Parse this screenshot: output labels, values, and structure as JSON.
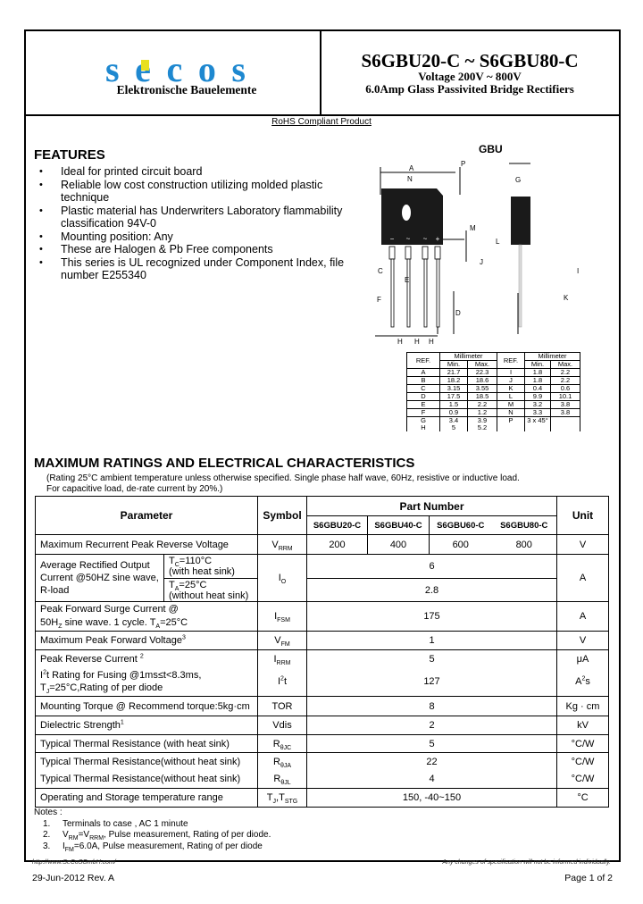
{
  "header": {
    "logo_text": "secos",
    "logo_subtitle": "Elektronische Bauelemente",
    "title": "S6GBU20-C ~ S6GBU80-C",
    "subtitle_voltage": "Voltage 200V ~ 800V",
    "subtitle_desc": "6.0Amp Glass Passivited Bridge Rectifiers",
    "brand_colors": {
      "blue": "#1e88d0",
      "yellow": "#e8e020"
    }
  },
  "rohs": "RoHS Compliant Product",
  "features": {
    "title": "FEATURES",
    "items": [
      "Ideal for printed circuit board",
      "Reliable low cost construction utilizing molded plastic technique",
      "Plastic material has Underwriters Laboratory flammability classification 94V-0",
      "Mounting position: Any",
      "These are Halogen & Pb Free components",
      "This series is UL recognized under Component Index, file number E255340"
    ]
  },
  "package": {
    "name": "GBU",
    "labels": [
      "A",
      "B",
      "C",
      "D",
      "E",
      "F",
      "G",
      "H",
      "I",
      "J",
      "K",
      "L",
      "M",
      "N",
      "P"
    ],
    "pin_marks": [
      "−",
      "~",
      "~",
      "+"
    ],
    "dimensions": {
      "headers": {
        "ref": "REF.",
        "unit": "Millimeter",
        "min": "Min.",
        "max": "Max."
      },
      "rows": [
        [
          [
            "A",
            "21.7",
            "22.3"
          ],
          [
            "I",
            "1.8",
            "2.2"
          ]
        ],
        [
          [
            "B",
            "18.2",
            "18.6"
          ],
          [
            "J",
            "1.8",
            "2.2"
          ]
        ],
        [
          [
            "C",
            "3.15",
            "3.55"
          ],
          [
            "K",
            "0.4",
            "0.6"
          ]
        ],
        [
          [
            "D",
            "17.5",
            "18.5"
          ],
          [
            "L",
            "9.9",
            "10.1"
          ]
        ],
        [
          [
            "E",
            "1.5",
            "2.2"
          ],
          [
            "M",
            "3.2",
            "3.8"
          ]
        ],
        [
          [
            "F",
            "0.9",
            "1.2"
          ],
          [
            "N",
            "3.3",
            "3.8"
          ]
        ],
        [
          [
            "G",
            "3.4",
            "3.9"
          ],
          [
            "P",
            "3 x 45°",
            ""
          ]
        ],
        [
          [
            "H",
            "5",
            "5.2"
          ],
          [
            "",
            "",
            ""
          ]
        ]
      ]
    }
  },
  "ratings": {
    "title": "MAXIMUM RATINGS AND ELECTRICAL CHARACTERISTICS",
    "condition_1": "(Rating 25°C ambient temperature unless otherwise specified. Single phase half wave, 60Hz, resistive or inductive load.",
    "condition_2": "For capacitive load, de-rate current by 20%.)",
    "headers": {
      "parameter": "Parameter",
      "symbol": "Symbol",
      "part_number": "Part Number",
      "unit": "Unit",
      "parts": [
        "S6GBU20-C",
        "S6GBU40-C",
        "S6GBU60-C",
        "S6GBU80-C"
      ]
    },
    "rows": {
      "vrrm": {
        "param": "Maximum Recurrent Peak Reverse Voltage",
        "sym": "V",
        "sub": "RRM",
        "values": [
          "200",
          "400",
          "600",
          "800"
        ],
        "unit": "V"
      },
      "io": {
        "param": "Average Rectified Output Current @50HZ sine wave, R-load",
        "sym": "I",
        "sub": "O",
        "cond1a": "T",
        "cond1sub": "C",
        "cond1b": "=110°C",
        "cond1c": "(with heat sink)",
        "val1": "6",
        "cond2a": "T",
        "cond2sub": "A",
        "cond2b": "=25°C",
        "cond2c": "(without heat sink)",
        "val2": "2.8",
        "unit": "A"
      },
      "ifsm": {
        "param1": "Peak Forward Surge Current @",
        "param2a": "50H",
        "param2sub": "Z",
        "param2b": " sine wave. 1 cycle. T",
        "param2sub2": "A",
        "param2c": "=25°C",
        "sym": "I",
        "sub": "FSM",
        "value": "175",
        "unit": "A"
      },
      "vfm": {
        "param": "Maximum Peak Forward Voltage",
        "sup": "3",
        "sym": "V",
        "sub": "FM",
        "value": "1",
        "unit": "V"
      },
      "irrm": {
        "param": "Peak Reverse Current ",
        "sup": "2",
        "sym": "I",
        "sub": "RRM",
        "value": "5",
        "unit": "μA"
      },
      "i2t": {
        "param_a": "I",
        "param_sup": "2",
        "param_b": "t Rating for Fusing @1ms≤t<8.3ms,",
        "param2a": "T",
        "param2sub": "J",
        "param2b": "=25°C,Rating of per diode",
        "sym_a": "I",
        "sym_sup": "2",
        "sym_b": "t",
        "value": "127",
        "unit_a": "A",
        "unit_sup": "2",
        "unit_b": "s"
      },
      "tor": {
        "param": "Mounting Torque @ Recommend torque:5kg·cm",
        "sym": "TOR",
        "value": "8",
        "unit": "Kg · cm"
      },
      "vdis": {
        "param": "Dielectric Strength",
        "sup": "1",
        "sym": "Vdis",
        "value": "2",
        "unit": "kV"
      },
      "rjc": {
        "param": "Typical Thermal Resistance (with heat sink)",
        "sym": "R",
        "sub": "θJC",
        "value": "5",
        "unit": "°C/W"
      },
      "rja": {
        "param": "Typical Thermal Resistance(without heat sink)",
        "sym": "R",
        "sub": "θJA",
        "value": "22",
        "unit": "°C/W"
      },
      "rjl": {
        "param": "Typical Thermal Resistance(without heat sink)",
        "sym": "R",
        "sub": "θJL",
        "value": "4",
        "unit": "°C/W"
      },
      "temp": {
        "param": "Operating and Storage temperature range",
        "sym_a": "T",
        "sym_sub": "J",
        "sym_b": ",T",
        "sym_sub2": "STG",
        "value": "150, -40~150",
        "unit": "°C"
      }
    }
  },
  "notes": {
    "title": "Notes :",
    "n1": {
      "num": "1.",
      "text": "Terminals to case , AC 1 minute"
    },
    "n2": {
      "num": "2.",
      "a": "V",
      "asub": "RM",
      "b": "=V",
      "bsub": "RRM",
      "c": ", Pulse measurement, Rating of per diode."
    },
    "n3": {
      "num": "3.",
      "a": "I",
      "asub": "FM",
      "b": "=6.0A, Pulse measurement, Rating of per diode"
    }
  },
  "footer": {
    "url": "http://www.SeCoSGmbH.com/",
    "disclaimer": "Any changes of specification will not be informed individually.",
    "date": "29-Jun-2012 Rev. A",
    "page": "Page 1 of 2"
  }
}
